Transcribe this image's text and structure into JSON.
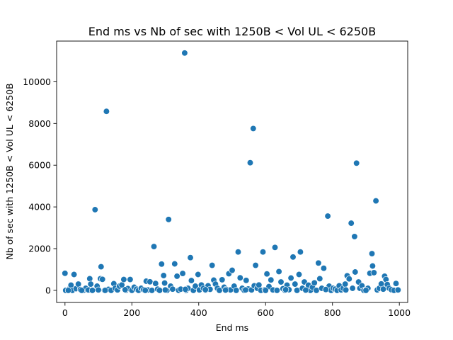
{
  "chart_data": {
    "type": "scatter",
    "title": "End ms vs Nb of sec with 1250B < Vol UL < 6250B",
    "xlabel": "End ms",
    "ylabel": "Nb of sec with 1250B < Vol UL < 6250B",
    "xlim": [
      -25,
      1025
    ],
    "ylim": [
      -580,
      11950
    ],
    "xticks": [
      0,
      200,
      400,
      600,
      800,
      1000
    ],
    "yticks": [
      0,
      2000,
      4000,
      6000,
      8000,
      10000
    ],
    "grid": false,
    "color": "#1f77b4",
    "points": [
      [
        0,
        820
      ],
      [
        2,
        0
      ],
      [
        12,
        60
      ],
      [
        18,
        250
      ],
      [
        22,
        0
      ],
      [
        27,
        760
      ],
      [
        33,
        80
      ],
      [
        40,
        300
      ],
      [
        46,
        40
      ],
      [
        55,
        0
      ],
      [
        62,
        100
      ],
      [
        70,
        20
      ],
      [
        74,
        560
      ],
      [
        77,
        300
      ],
      [
        82,
        0
      ],
      [
        90,
        3870
      ],
      [
        96,
        200
      ],
      [
        100,
        20
      ],
      [
        106,
        560
      ],
      [
        108,
        1130
      ],
      [
        112,
        530
      ],
      [
        118,
        0
      ],
      [
        124,
        8580
      ],
      [
        130,
        50
      ],
      [
        138,
        0
      ],
      [
        146,
        320
      ],
      [
        150,
        100
      ],
      [
        157,
        20
      ],
      [
        163,
        200
      ],
      [
        170,
        260
      ],
      [
        176,
        520
      ],
      [
        182,
        0
      ],
      [
        188,
        90
      ],
      [
        195,
        520
      ],
      [
        200,
        0
      ],
      [
        207,
        150
      ],
      [
        214,
        60
      ],
      [
        220,
        0
      ],
      [
        228,
        100
      ],
      [
        235,
        30
      ],
      [
        243,
        440
      ],
      [
        248,
        20
      ],
      [
        254,
        410
      ],
      [
        260,
        0
      ],
      [
        266,
        2100
      ],
      [
        271,
        330
      ],
      [
        277,
        60
      ],
      [
        283,
        0
      ],
      [
        289,
        1260
      ],
      [
        295,
        710
      ],
      [
        298,
        350
      ],
      [
        305,
        0
      ],
      [
        310,
        3400
      ],
      [
        316,
        200
      ],
      [
        322,
        60
      ],
      [
        328,
        1270
      ],
      [
        335,
        680
      ],
      [
        340,
        0
      ],
      [
        346,
        60
      ],
      [
        352,
        810
      ],
      [
        358,
        11380
      ],
      [
        362,
        0
      ],
      [
        368,
        100
      ],
      [
        375,
        1570
      ],
      [
        378,
        470
      ],
      [
        384,
        0
      ],
      [
        390,
        200
      ],
      [
        398,
        760
      ],
      [
        402,
        20
      ],
      [
        408,
        260
      ],
      [
        414,
        100
      ],
      [
        420,
        0
      ],
      [
        428,
        220
      ],
      [
        434,
        50
      ],
      [
        440,
        1200
      ],
      [
        445,
        490
      ],
      [
        450,
        300
      ],
      [
        456,
        100
      ],
      [
        462,
        0
      ],
      [
        470,
        510
      ],
      [
        476,
        150
      ],
      [
        482,
        50
      ],
      [
        490,
        800
      ],
      [
        495,
        20
      ],
      [
        500,
        960
      ],
      [
        506,
        200
      ],
      [
        512,
        0
      ],
      [
        518,
        1840
      ],
      [
        524,
        600
      ],
      [
        530,
        100
      ],
      [
        536,
        0
      ],
      [
        542,
        480
      ],
      [
        548,
        70
      ],
      [
        554,
        6120
      ],
      [
        558,
        20
      ],
      [
        563,
        7760
      ],
      [
        566,
        220
      ],
      [
        570,
        1200
      ],
      [
        575,
        100
      ],
      [
        580,
        260
      ],
      [
        586,
        0
      ],
      [
        592,
        1840
      ],
      [
        598,
        30
      ],
      [
        604,
        790
      ],
      [
        610,
        180
      ],
      [
        616,
        500
      ],
      [
        622,
        20
      ],
      [
        628,
        2060
      ],
      [
        634,
        0
      ],
      [
        640,
        900
      ],
      [
        646,
        400
      ],
      [
        652,
        80
      ],
      [
        658,
        0
      ],
      [
        664,
        250
      ],
      [
        670,
        30
      ],
      [
        676,
        590
      ],
      [
        682,
        1600
      ],
      [
        688,
        300
      ],
      [
        694,
        0
      ],
      [
        700,
        760
      ],
      [
        704,
        1840
      ],
      [
        710,
        100
      ],
      [
        716,
        400
      ],
      [
        722,
        20
      ],
      [
        728,
        250
      ],
      [
        734,
        0
      ],
      [
        740,
        150
      ],
      [
        746,
        360
      ],
      [
        752,
        0
      ],
      [
        758,
        1310
      ],
      [
        762,
        560
      ],
      [
        768,
        100
      ],
      [
        774,
        1060
      ],
      [
        780,
        20
      ],
      [
        786,
        3560
      ],
      [
        790,
        200
      ],
      [
        796,
        0
      ],
      [
        802,
        100
      ],
      [
        808,
        60
      ],
      [
        814,
        0
      ],
      [
        820,
        220
      ],
      [
        826,
        20
      ],
      [
        832,
        100
      ],
      [
        838,
        300
      ],
      [
        844,
        700
      ],
      [
        850,
        550
      ],
      [
        856,
        3220
      ],
      [
        860,
        100
      ],
      [
        866,
        2580
      ],
      [
        868,
        880
      ],
      [
        872,
        6100
      ],
      [
        878,
        400
      ],
      [
        882,
        100
      ],
      [
        888,
        220
      ],
      [
        894,
        0
      ],
      [
        900,
        30
      ],
      [
        906,
        100
      ],
      [
        912,
        820
      ],
      [
        918,
        1760
      ],
      [
        920,
        1170
      ],
      [
        924,
        850
      ],
      [
        930,
        4290
      ],
      [
        934,
        20
      ],
      [
        940,
        100
      ],
      [
        946,
        310
      ],
      [
        952,
        60
      ],
      [
        956,
        680
      ],
      [
        960,
        520
      ],
      [
        964,
        280
      ],
      [
        970,
        100
      ],
      [
        976,
        30
      ],
      [
        984,
        0
      ],
      [
        990,
        330
      ],
      [
        996,
        20
      ],
      [
        10,
        0
      ],
      [
        50,
        0
      ],
      [
        120,
        0
      ],
      [
        180,
        30
      ],
      [
        240,
        0
      ],
      [
        300,
        20
      ],
      [
        360,
        50
      ],
      [
        420,
        30
      ],
      [
        480,
        10
      ],
      [
        540,
        20
      ],
      [
        600,
        0
      ],
      [
        660,
        30
      ],
      [
        720,
        10
      ],
      [
        780,
        40
      ],
      [
        840,
        20
      ],
      [
        900,
        0
      ]
    ]
  }
}
